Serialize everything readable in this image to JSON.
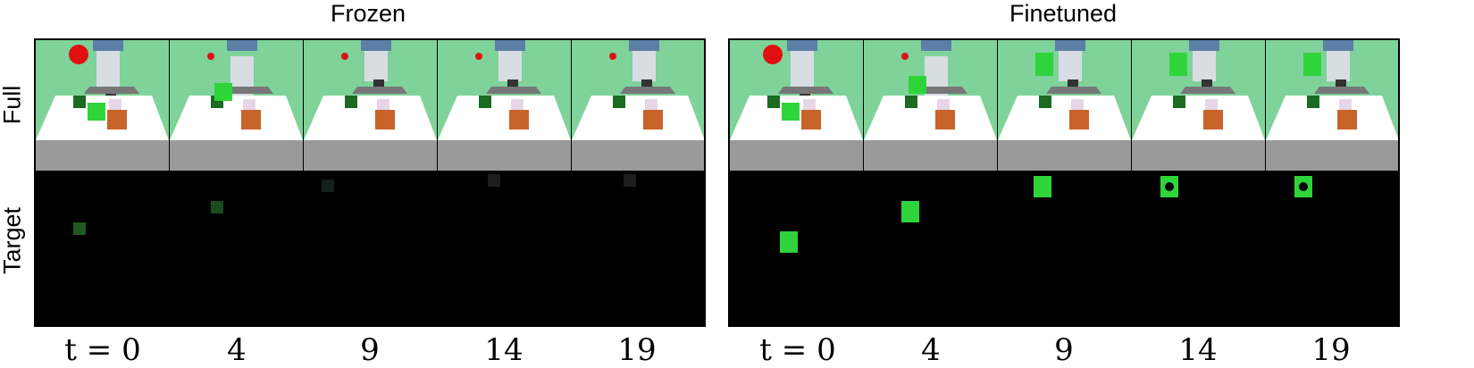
{
  "panels": [
    {
      "title": "Frozen",
      "key": "frozen"
    },
    {
      "title": "Finetuned",
      "key": "finetuned"
    }
  ],
  "row_labels": {
    "full": "Full",
    "target": "Target"
  },
  "time_labels": [
    "t = 0",
    "4",
    "9",
    "14",
    "19"
  ],
  "colors": {
    "background_wall": "#7fd39a",
    "table_top": "#ffffff",
    "table_front": "#9a9a9a",
    "target_cube": "#2fd43b",
    "dark_cube": "#1b6b22",
    "orange_box": "#c8642a",
    "red_ball": "#e01010"
  }
}
